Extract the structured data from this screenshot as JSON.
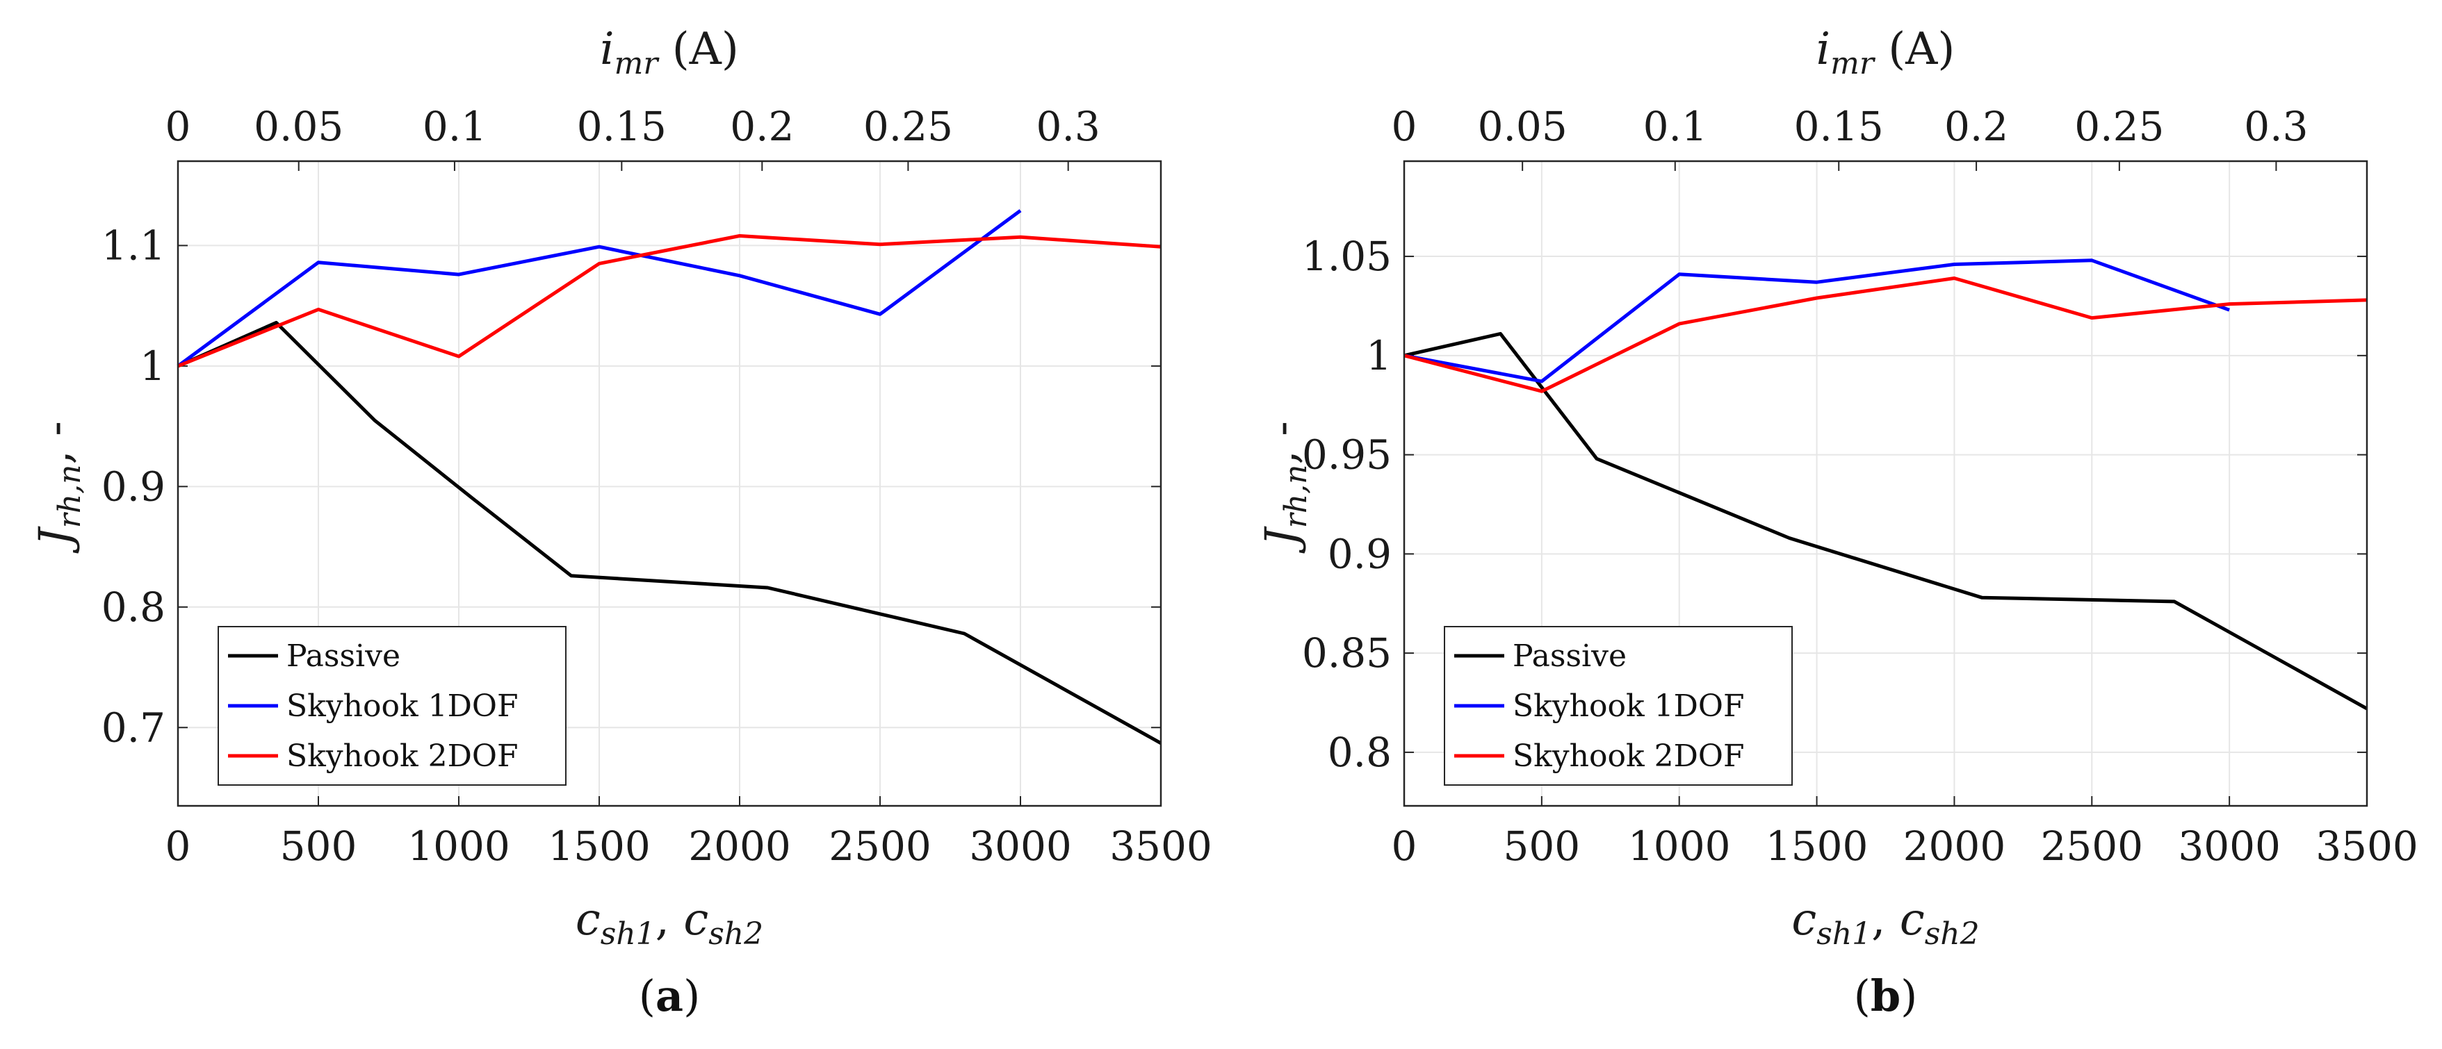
{
  "chart_data": [
    {
      "type": "line",
      "panel_label": "a",
      "caption": {
        "open": "(",
        "letter": "a",
        "close": ")"
      },
      "xlabel": {
        "base1": "c",
        "sub1": "sh1",
        "sep": ", ",
        "base2": "c",
        "sub2": "sh2"
      },
      "ylabel": {
        "base": "J",
        "sub": "rh,n",
        "suffix": ", -"
      },
      "top_xlabel": {
        "base": "i",
        "sub": "mr",
        "unit": " (A)"
      },
      "xlim": [
        0,
        3500
      ],
      "ylim": [
        0.635,
        1.17
      ],
      "xticks": [
        0,
        500,
        1000,
        1500,
        2000,
        2500,
        3000,
        3500
      ],
      "xtick_labels": [
        "0",
        "500",
        "1000",
        "1500",
        "2000",
        "2500",
        "3000",
        "3500"
      ],
      "yticks": [
        0.7,
        0.8,
        0.9,
        1.0,
        1.1
      ],
      "ytick_labels": [
        "0.7",
        "0.8",
        "0.9",
        "1",
        "1.1"
      ],
      "top_xticks": [
        0,
        350,
        700,
        1050,
        1400,
        1750,
        2100,
        2450,
        2800
      ],
      "top_tick_labels": [
        "0",
        "0.05",
        "0.1",
        "0.15",
        "0.2",
        "0.25",
        "0.3"
      ],
      "top_ticks_note": "current ticks",
      "top_tick_positions_c": [
        0,
        430,
        985,
        1580,
        2080,
        2600,
        3170
      ],
      "grid": true,
      "legend_position": "bottom-left",
      "series": [
        {
          "name": "Passive",
          "color": "#000000",
          "x": [
            0,
            350,
            700,
            1050,
            1400,
            2100,
            2800,
            3500
          ],
          "y": [
            1.0,
            1.036,
            0.955,
            0.89,
            0.826,
            0.816,
            0.778,
            0.687
          ]
        },
        {
          "name": "Skyhook 1DOF",
          "color": "#0000ff",
          "x": [
            0,
            500,
            1000,
            1500,
            2000,
            2500,
            3000
          ],
          "y": [
            1.0,
            1.086,
            1.076,
            1.099,
            1.075,
            1.043,
            1.129
          ]
        },
        {
          "name": "Skyhook 2DOF",
          "color": "#ff0000",
          "x": [
            0,
            500,
            1000,
            1500,
            2000,
            2500,
            3000,
            3500
          ],
          "y": [
            1.0,
            1.047,
            1.008,
            1.085,
            1.108,
            1.101,
            1.107,
            1.099
          ]
        }
      ]
    },
    {
      "type": "line",
      "panel_label": "b",
      "caption": {
        "open": "(",
        "letter": "b",
        "close": ")"
      },
      "xlabel": {
        "base1": "c",
        "sub1": "sh1",
        "sep": ", ",
        "base2": "c",
        "sub2": "sh2"
      },
      "ylabel": {
        "base": "J",
        "sub": "rh,n",
        "suffix": ", -"
      },
      "top_xlabel": {
        "base": "i",
        "sub": "mr",
        "unit": " (A)"
      },
      "xlim": [
        0,
        3500
      ],
      "ylim": [
        0.773,
        1.098
      ],
      "xticks": [
        0,
        500,
        1000,
        1500,
        2000,
        2500,
        3000,
        3500
      ],
      "xtick_labels": [
        "0",
        "500",
        "1000",
        "1500",
        "2000",
        "2500",
        "3000",
        "3500"
      ],
      "yticks": [
        0.8,
        0.85,
        0.9,
        0.95,
        1.0,
        1.05
      ],
      "ytick_labels": [
        "0.8",
        "0.85",
        "0.9",
        "0.95",
        "1",
        "1.05"
      ],
      "top_tick_labels": [
        "0",
        "0.05",
        "0.1",
        "0.15",
        "0.2",
        "0.25",
        "0.3"
      ],
      "top_tick_positions_c": [
        0,
        430,
        985,
        1580,
        2080,
        2600,
        3170
      ],
      "grid": true,
      "legend_position": "bottom-left",
      "series": [
        {
          "name": "Passive",
          "color": "#000000",
          "x": [
            0,
            350,
            700,
            1400,
            2100,
            2800,
            3500
          ],
          "y": [
            1.0,
            1.011,
            0.948,
            0.908,
            0.878,
            0.876,
            0.822
          ]
        },
        {
          "name": "Skyhook 1DOF",
          "color": "#0000ff",
          "x": [
            0,
            500,
            1000,
            1500,
            2000,
            2500,
            3000
          ],
          "y": [
            1.0,
            0.987,
            1.041,
            1.037,
            1.046,
            1.048,
            1.023
          ]
        },
        {
          "name": "Skyhook 2DOF",
          "color": "#ff0000",
          "x": [
            0,
            500,
            1000,
            1500,
            2000,
            2500,
            3000,
            3500
          ],
          "y": [
            1.0,
            0.982,
            1.016,
            1.029,
            1.039,
            1.019,
            1.026,
            1.028
          ]
        }
      ]
    }
  ]
}
